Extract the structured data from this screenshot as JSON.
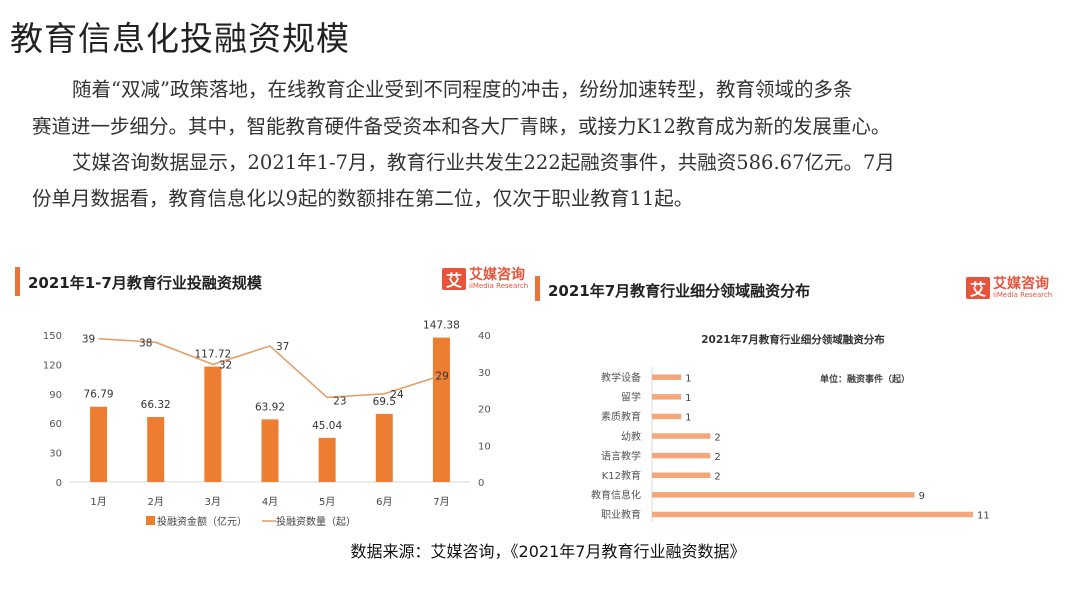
{
  "page": {
    "title": "教育信息化投融资规模",
    "paragraphs": [
      "随着“双减”政策落地，在线教育企业受到不同程度的冲击，纷纷加速转型，教育领域的多条",
      "赛道进一步细分。其中，智能教育硬件备受资本和各大厂青睐，或接力K12教育成为新的发展重心。",
      "艾媒咨询数据显示，2021年1-7月，教育行业共发生222起融资事件，共融资586.67亿元。7月",
      "份单月数据看，教育信息化以9起的数额排在第二位，仅次于职业教育11起。"
    ],
    "source": "数据来源：艾媒咨询，《2021年7月教育行业融资数据》",
    "logo": {
      "icon": "艾",
      "cn": "艾媒咨询",
      "en": "iiMedia Research"
    },
    "accent_color": "#e8743b"
  },
  "chart_data": [
    {
      "type": "bar+line",
      "title": "2021年1-7月教育行业投融资规模",
      "categories": [
        "1月",
        "2月",
        "3月",
        "4月",
        "5月",
        "6月",
        "7月"
      ],
      "series": [
        {
          "name": "投融资金额（亿元）",
          "type": "bar",
          "axis": "left",
          "color": "#ed7d31",
          "values": [
            76.79,
            66.32,
            117.72,
            63.92,
            45.04,
            69.5,
            147.38
          ]
        },
        {
          "name": "投融资数量（起）",
          "type": "line",
          "axis": "right",
          "color": "#e3a06a",
          "values": [
            39,
            38,
            32,
            37,
            23,
            24,
            29
          ]
        }
      ],
      "y_left": {
        "range": [
          0,
          150
        ],
        "ticks": [
          0,
          30,
          60,
          90,
          120,
          150
        ]
      },
      "y_right": {
        "range": [
          0,
          40
        ],
        "ticks": [
          0,
          10,
          20,
          30,
          40
        ]
      },
      "legend": "bottom",
      "grid": false
    },
    {
      "type": "bar",
      "orientation": "horizontal",
      "header": "2021年7月教育行业细分领域融资分布",
      "title": "2021年7月教育行业细分领域融资分布",
      "unit_note": "单位：融资事件（起）",
      "categories": [
        "教学设备",
        "留学",
        "素质教育",
        "幼教",
        "语言教学",
        "K12教育",
        "教育信息化",
        "职业教育"
      ],
      "values": [
        1,
        1,
        1,
        2,
        2,
        2,
        9,
        11
      ],
      "color": "#f4a77a",
      "grid": false
    }
  ]
}
